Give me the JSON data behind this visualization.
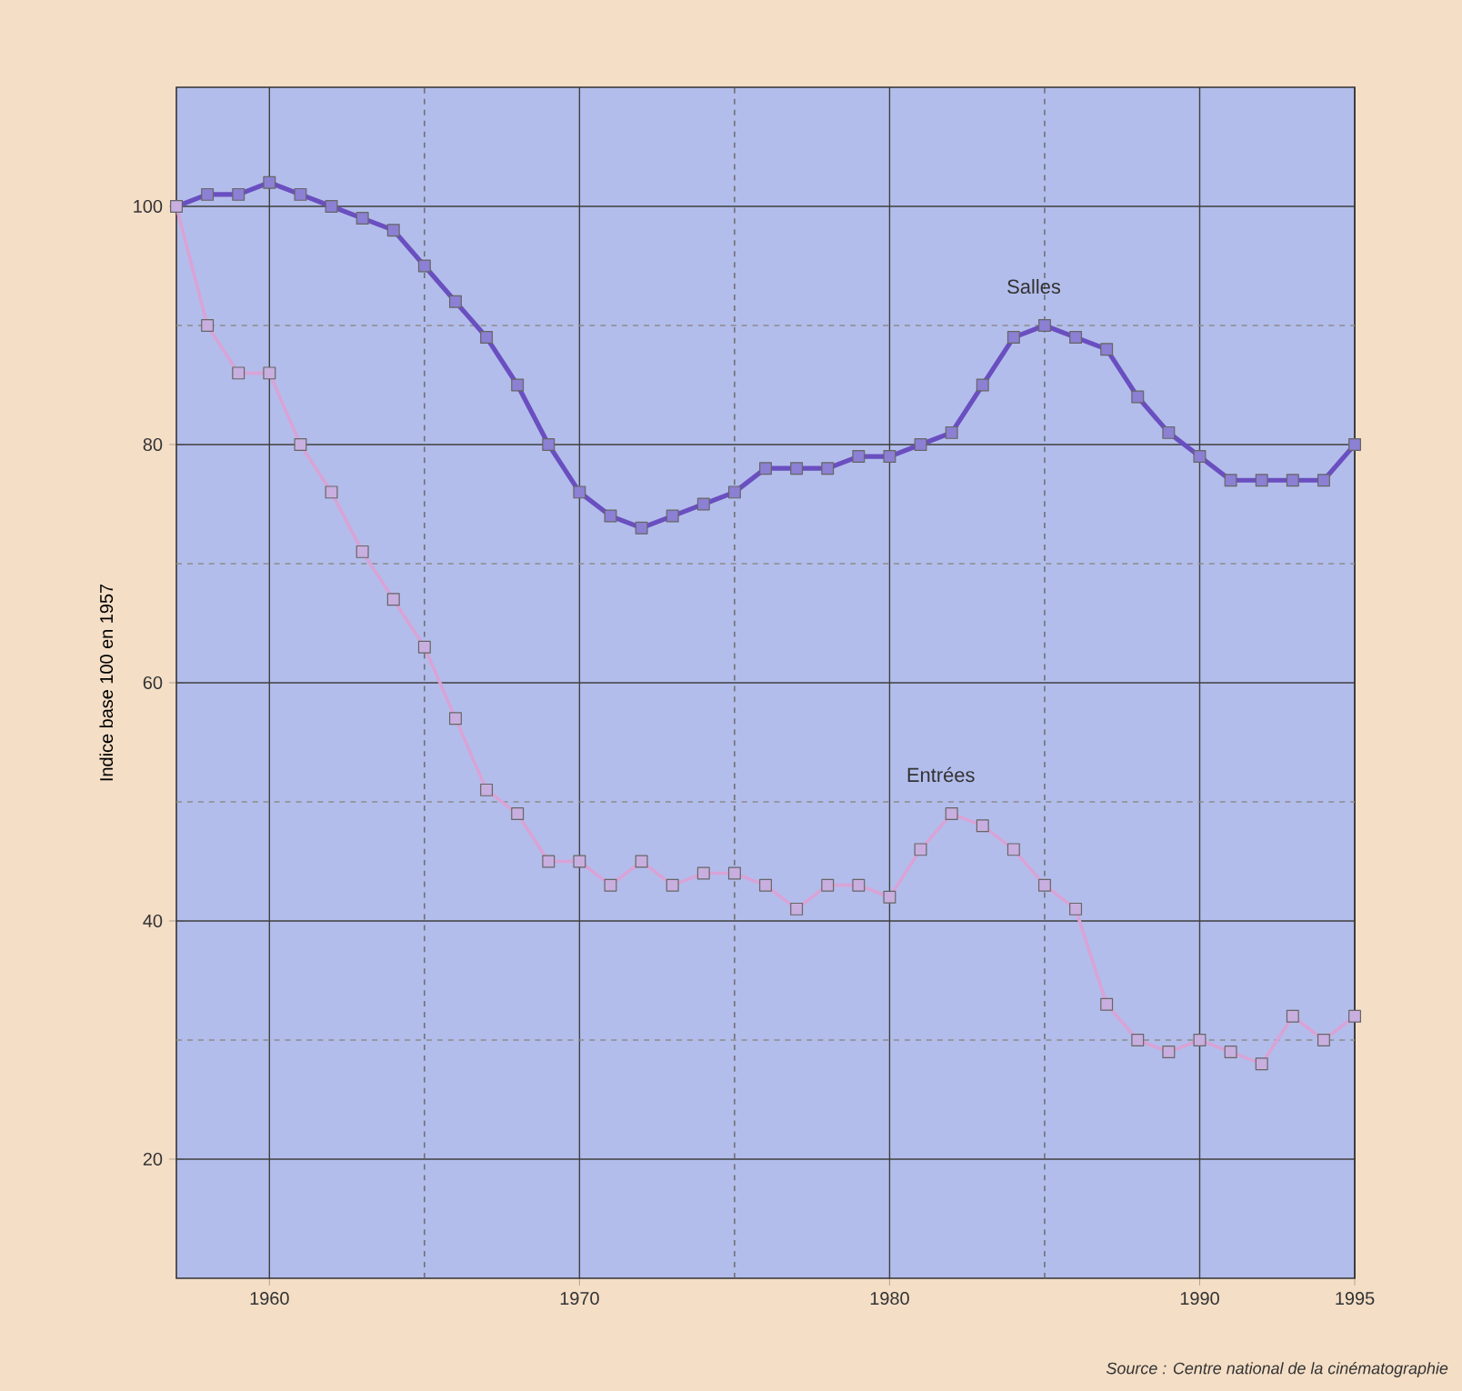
{
  "chart_data": {
    "type": "line",
    "ylabel": "Indice base 100 en 1957",
    "x": [
      1957,
      1958,
      1959,
      1960,
      1961,
      1962,
      1963,
      1964,
      1965,
      1966,
      1967,
      1968,
      1969,
      1970,
      1971,
      1972,
      1973,
      1974,
      1975,
      1976,
      1977,
      1978,
      1979,
      1980,
      1981,
      1982,
      1983,
      1984,
      1985,
      1986,
      1987,
      1988,
      1989,
      1990,
      1991,
      1992,
      1993,
      1994,
      1995
    ],
    "series": [
      {
        "name": "Salles",
        "color": "#6a4fc0",
        "values": [
          100,
          101,
          101,
          102,
          101,
          100,
          99,
          98,
          95,
          92,
          89,
          85,
          80,
          76,
          74,
          73,
          74,
          75,
          76,
          78,
          78,
          78,
          79,
          79,
          80,
          81,
          85,
          89,
          90,
          89,
          88,
          84,
          81,
          79,
          77,
          77,
          77,
          77,
          80
        ]
      },
      {
        "name": "Entrées",
        "color": "#d9a3d6",
        "values": [
          100,
          90,
          86,
          86,
          80,
          76,
          71,
          67,
          63,
          57,
          51,
          49,
          45,
          45,
          43,
          45,
          43,
          44,
          44,
          43,
          41,
          43,
          43,
          42,
          46,
          49,
          48,
          46,
          43,
          41,
          33,
          30,
          29,
          30,
          29,
          28,
          32,
          30,
          32
        ]
      }
    ],
    "xlim": [
      1957,
      1995
    ],
    "ylim": [
      10,
      110
    ],
    "xticks": [
      {
        "value": 1960,
        "label": "1960"
      },
      {
        "value": 1965,
        "label": null
      },
      {
        "value": 1970,
        "label": "1970"
      },
      {
        "value": 1975,
        "label": null
      },
      {
        "value": 1980,
        "label": "1980"
      },
      {
        "value": 1985,
        "label": null
      },
      {
        "value": 1990,
        "label": "1990"
      },
      1995
    ],
    "yticks": [
      20,
      {
        "value": 30,
        "label": null
      },
      40,
      {
        "value": 50,
        "label": null
      },
      60,
      {
        "value": 70,
        "label": null
      },
      80,
      {
        "value": 90,
        "label": null
      },
      100
    ],
    "grid": true,
    "marker": "square",
    "line_style": "solid",
    "legend": false,
    "annotations": [
      "Source : Centre national de la cinématographie"
    ]
  }
}
